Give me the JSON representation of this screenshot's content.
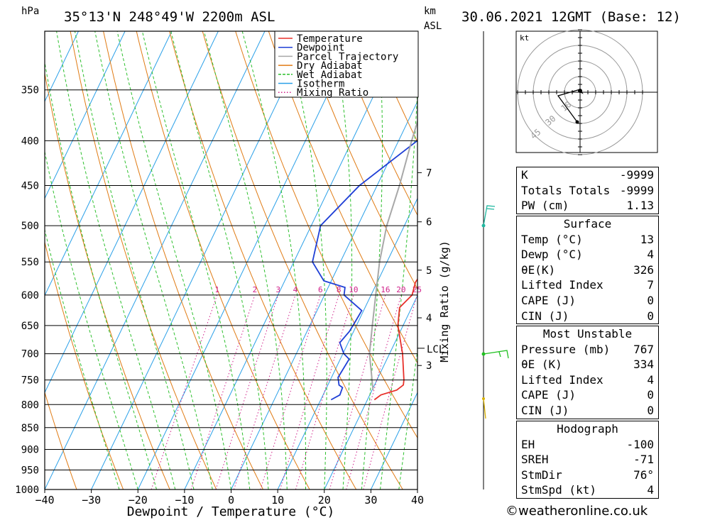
{
  "header": {
    "units_left": "hPa",
    "location": "35°13'N 248°49'W 2200m ASL",
    "km_label": "km",
    "asl_label": "ASL",
    "datetime": "30.06.2021 12GMT (Base: 12)"
  },
  "legend": [
    {
      "name": "Temperature",
      "color": "#e8302a",
      "style": "solid"
    },
    {
      "name": "Dewpoint",
      "color": "#1f3fd6",
      "style": "solid"
    },
    {
      "name": "Parcel Trajectory",
      "color": "#a8a8a8",
      "style": "solid"
    },
    {
      "name": "Dry Adiabat",
      "color": "#e07b14",
      "style": "solid"
    },
    {
      "name": "Wet Adiabat",
      "color": "#2ec02e",
      "style": "dashed"
    },
    {
      "name": "Isotherm",
      "color": "#2aa0e8",
      "style": "solid"
    },
    {
      "name": "Mixing Ratio",
      "color": "#d0208a",
      "style": "dotted"
    }
  ],
  "chart_data": {
    "type": "line",
    "xlabel": "Dewpoint / Temperature (°C)",
    "ylabel": "hPa",
    "x_range": [
      -40,
      40
    ],
    "y_range": [
      1000,
      300
    ],
    "x_ticks": [
      -40,
      -30,
      -20,
      -10,
      0,
      10,
      20,
      30,
      40
    ],
    "pressure_levels": [
      350,
      400,
      450,
      500,
      550,
      600,
      650,
      700,
      750,
      800,
      850,
      900,
      950,
      1000
    ],
    "height_ticks_km": [
      {
        "label": "7",
        "p": 435
      },
      {
        "label": "6",
        "p": 495
      },
      {
        "label": "5",
        "p": 562
      },
      {
        "label": "4",
        "p": 637
      },
      {
        "label": "3",
        "p": 722
      }
    ],
    "lcl": {
      "label": "LCL",
      "p": 690
    },
    "mixing_ratio_axis_label": "Mixing Ratio (g/kg)",
    "mixing_ratio_labels": [
      "1",
      "2",
      "3",
      "4",
      "6",
      "8",
      "10",
      "16",
      "20",
      "25"
    ],
    "series": [
      {
        "name": "Temperature",
        "color": "#e8302a",
        "points": [
          [
            790,
            21.5
          ],
          [
            780,
            22.4
          ],
          [
            770,
            25.3
          ],
          [
            760,
            26.2
          ],
          [
            750,
            25.8
          ],
          [
            700,
            22.8
          ],
          [
            650,
            18.9
          ],
          [
            620,
            17.4
          ],
          [
            600,
            18.8
          ],
          [
            580,
            18.2
          ],
          [
            560,
            18.8
          ],
          [
            550,
            18.4
          ],
          [
            500,
            17.2
          ],
          [
            450,
            14.2
          ],
          [
            400,
            10.9
          ],
          [
            380,
            12.4
          ],
          [
            360,
            14.2
          ]
        ]
      },
      {
        "name": "Dewpoint",
        "color": "#1f3fd6",
        "points": [
          [
            790,
            12.2
          ],
          [
            780,
            13.6
          ],
          [
            765,
            13.4
          ],
          [
            760,
            12.4
          ],
          [
            745,
            11.4
          ],
          [
            710,
            11.9
          ],
          [
            700,
            10.2
          ],
          [
            680,
            8.2
          ],
          [
            660,
            9.1
          ],
          [
            640,
            9.4
          ],
          [
            625,
            9.6
          ],
          [
            600,
            4.2
          ],
          [
            588,
            3.6
          ],
          [
            578,
            -1.6
          ],
          [
            550,
            -6.0
          ],
          [
            500,
            -8.0
          ],
          [
            450,
            -3.8
          ],
          [
            400,
            4.0
          ],
          [
            340,
            17.0
          ]
        ]
      },
      {
        "name": "Parcel Trajectory",
        "color": "#a8a8a8",
        "points": [
          [
            770,
            20.2
          ],
          [
            700,
            15.7
          ],
          [
            650,
            13.4
          ],
          [
            600,
            11.0
          ],
          [
            550,
            8.4
          ],
          [
            500,
            6.2
          ],
          [
            450,
            4.8
          ],
          [
            400,
            2.8
          ],
          [
            350,
            0.9
          ]
        ]
      }
    ]
  },
  "hodograph": {
    "unit": "kt",
    "ring_labels": [
      "10",
      "30",
      "45"
    ]
  },
  "indices": {
    "k_label": "K",
    "k_value": "-9999",
    "tt_label": "Totals Totals",
    "tt_value": "-9999",
    "pw_label": "PW (cm)",
    "pw_value": "1.13"
  },
  "surface": {
    "title": "Surface",
    "rows": [
      {
        "label": "Temp (°C)",
        "value": "13"
      },
      {
        "label": "Dewp (°C)",
        "value": "4"
      },
      {
        "label": "θE(K)",
        "value": "326"
      },
      {
        "label": "Lifted Index",
        "value": "7"
      },
      {
        "label": "CAPE (J)",
        "value": "0"
      },
      {
        "label": "CIN (J)",
        "value": "0"
      }
    ]
  },
  "most_unstable": {
    "title": "Most Unstable",
    "rows": [
      {
        "label": "Pressure (mb)",
        "value": "767"
      },
      {
        "label": "θE (K)",
        "value": "334"
      },
      {
        "label": "Lifted Index",
        "value": "4"
      },
      {
        "label": "CAPE (J)",
        "value": "0"
      },
      {
        "label": "CIN (J)",
        "value": "0"
      }
    ]
  },
  "hodograph_panel": {
    "title": "Hodograph",
    "rows": [
      {
        "label": "EH",
        "value": "-100"
      },
      {
        "label": "SREH",
        "value": "-71"
      },
      {
        "label": "StmDir",
        "value": "76°"
      },
      {
        "label": "StmSpd (kt)",
        "value": "4"
      }
    ]
  },
  "footer": {
    "copyright": "©weatheronline.co.uk"
  }
}
